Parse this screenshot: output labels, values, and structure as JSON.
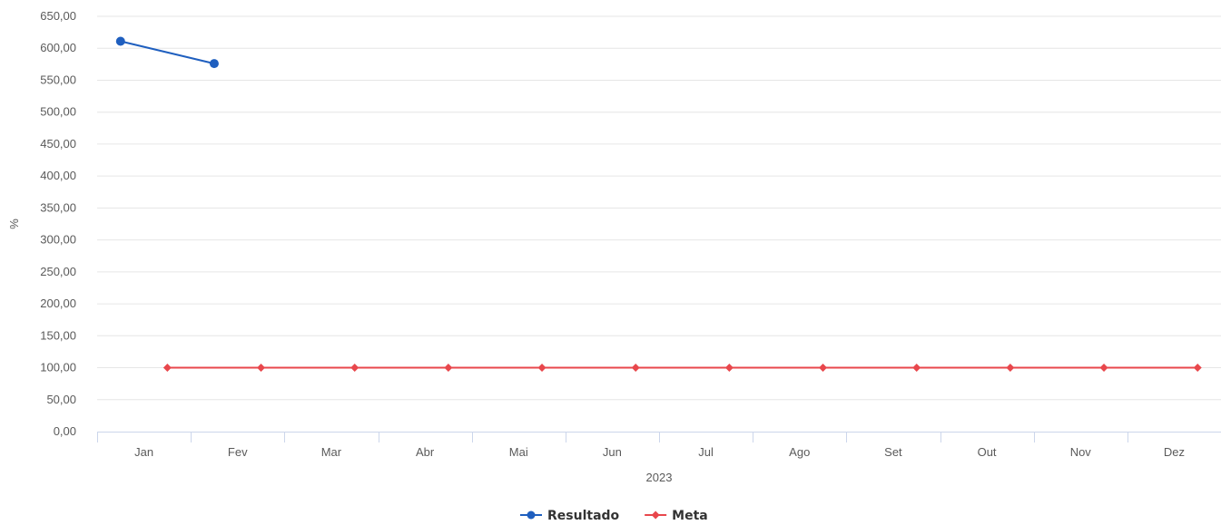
{
  "chart_data": {
    "type": "line",
    "title": "",
    "xlabel": "2023",
    "ylabel": "%",
    "categories": [
      "Jan",
      "Fev",
      "Mar",
      "Abr",
      "Mai",
      "Jun",
      "Jul",
      "Ago",
      "Set",
      "Out",
      "Nov",
      "Dez"
    ],
    "y_ticks": [
      "0,00",
      "50,00",
      "100,00",
      "150,00",
      "200,00",
      "250,00",
      "300,00",
      "350,00",
      "400,00",
      "450,00",
      "500,00",
      "550,00",
      "600,00",
      "650,00"
    ],
    "ylim": [
      0,
      650
    ],
    "grid": true,
    "legend_position": "bottom-center",
    "series": [
      {
        "name": "Resultado",
        "color": "#1f5fbf",
        "marker": "circle",
        "x_offset_fraction": 0.25,
        "values": [
          611,
          576,
          null,
          null,
          null,
          null,
          null,
          null,
          null,
          null,
          null,
          null
        ]
      },
      {
        "name": "Meta",
        "color": "#e8474c",
        "marker": "diamond",
        "x_offset_fraction": 0.75,
        "values": [
          100,
          100,
          100,
          100,
          100,
          100,
          100,
          100,
          100,
          100,
          100,
          100
        ]
      }
    ]
  }
}
